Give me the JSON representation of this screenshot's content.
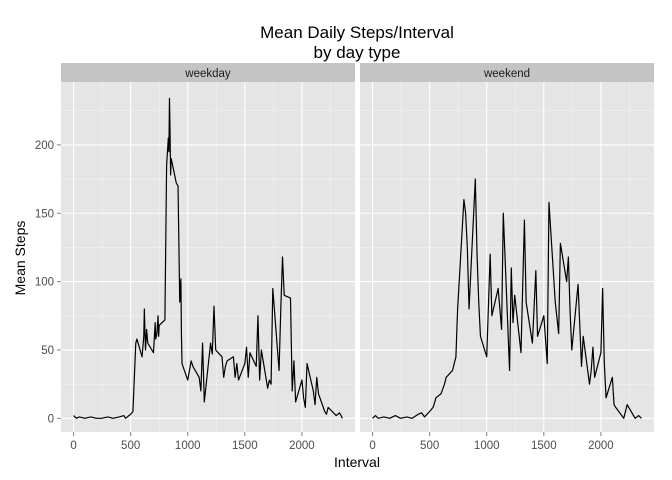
{
  "chart_data": {
    "type": "line",
    "title": "Mean Daily Steps/Interval",
    "subtitle": "by day type",
    "xlabel": "Interval",
    "ylabel": "Mean Steps",
    "xlim": [
      -110,
      2465
    ],
    "ylim": [
      -10,
      246
    ],
    "x_ticks": [
      0,
      500,
      1000,
      1500,
      2000
    ],
    "y_ticks": [
      0,
      50,
      100,
      150,
      200
    ],
    "grid": true,
    "colors": {
      "panel_bg": "#e5e5e5",
      "grid_major": "#ffffff",
      "grid_minor": "#f2f2f2",
      "strip_bg": "#c4c4c4",
      "line": "#000000",
      "tick": "#808080"
    },
    "panels": [
      {
        "label": "weekday",
        "x": [
          0,
          25,
          50,
          100,
          150,
          200,
          245,
          300,
          345,
          400,
          440,
          455,
          500,
          520,
          530,
          545,
          555,
          600,
          615,
          620,
          630,
          640,
          650,
          700,
          715,
          720,
          730,
          740,
          745,
          750,
          800,
          815,
          830,
          835,
          840,
          845,
          850,
          855,
          900,
          915,
          930,
          940,
          945,
          950,
          1000,
          1015,
          1030,
          1045,
          1100,
          1115,
          1130,
          1145,
          1200,
          1215,
          1230,
          1245,
          1300,
          1315,
          1330,
          1345,
          1400,
          1415,
          1430,
          1445,
          1500,
          1515,
          1530,
          1545,
          1600,
          1615,
          1630,
          1645,
          1700,
          1715,
          1730,
          1745,
          1800,
          1815,
          1830,
          1845,
          1900,
          1915,
          1930,
          1945,
          2000,
          2015,
          2030,
          2045,
          2100,
          2115,
          2130,
          2145,
          2200,
          2215,
          2230,
          2300,
          2330,
          2355
        ],
        "values": [
          2,
          0,
          1,
          0,
          1,
          0,
          0,
          1,
          0,
          1,
          2,
          0,
          3,
          5,
          25,
          55,
          58,
          45,
          60,
          80,
          50,
          65,
          55,
          48,
          70,
          58,
          62,
          75,
          60,
          68,
          72,
          185,
          205,
          195,
          234,
          210,
          178,
          190,
          172,
          170,
          85,
          102,
          60,
          40,
          28,
          35,
          42,
          38,
          30,
          20,
          55,
          12,
          55,
          47,
          82,
          50,
          45,
          30,
          38,
          42,
          45,
          30,
          40,
          28,
          40,
          52,
          30,
          48,
          38,
          75,
          28,
          50,
          22,
          28,
          25,
          95,
          35,
          80,
          118,
          90,
          88,
          20,
          42,
          12,
          28,
          15,
          8,
          40,
          20,
          10,
          30,
          18,
          5,
          3,
          8,
          2,
          4,
          0
        ]
      },
      {
        "label": "weekend",
        "x": [
          0,
          25,
          50,
          100,
          150,
          200,
          245,
          300,
          345,
          400,
          430,
          455,
          500,
          530,
          545,
          555,
          600,
          630,
          645,
          700,
          730,
          745,
          800,
          815,
          830,
          845,
          900,
          915,
          930,
          945,
          1000,
          1030,
          1045,
          1100,
          1130,
          1145,
          1200,
          1215,
          1230,
          1245,
          1300,
          1330,
          1345,
          1400,
          1430,
          1445,
          1500,
          1530,
          1545,
          1600,
          1630,
          1645,
          1700,
          1715,
          1730,
          1745,
          1800,
          1830,
          1845,
          1900,
          1915,
          1930,
          1945,
          2000,
          2015,
          2030,
          2045,
          2100,
          2115,
          2130,
          2200,
          2230,
          2300,
          2330,
          2355
        ],
        "values": [
          0,
          2,
          0,
          1,
          0,
          2,
          0,
          1,
          0,
          3,
          4,
          1,
          5,
          8,
          12,
          15,
          18,
          25,
          30,
          35,
          45,
          80,
          160,
          150,
          125,
          80,
          175,
          120,
          85,
          60,
          45,
          120,
          75,
          95,
          65,
          150,
          35,
          110,
          70,
          90,
          48,
          145,
          85,
          55,
          108,
          60,
          75,
          40,
          158,
          85,
          62,
          128,
          100,
          118,
          78,
          50,
          98,
          38,
          60,
          25,
          35,
          52,
          30,
          48,
          95,
          40,
          15,
          30,
          10,
          8,
          0,
          10,
          0,
          2,
          0
        ]
      }
    ]
  }
}
